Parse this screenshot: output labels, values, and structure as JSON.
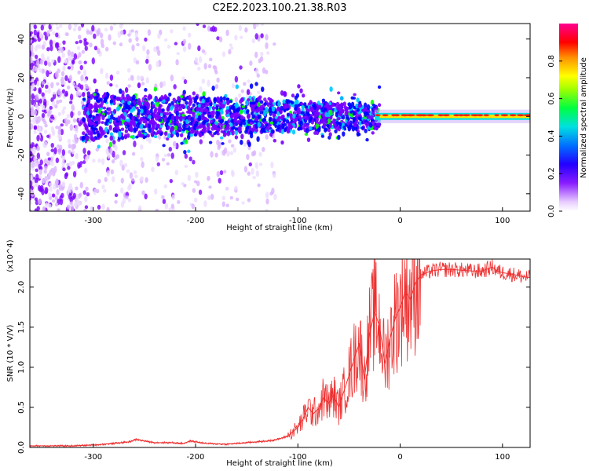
{
  "figure_title": "C2E2.2023.100.21.38.R03",
  "chart_data": [
    {
      "type": "heatmap",
      "title": "C2E2.2023.100.21.38.R03",
      "xlabel": "Height of straight line (km)",
      "ylabel": "Frequency (Hz)",
      "xlim": [
        -362,
        127
      ],
      "ylim": [
        -49,
        48
      ],
      "xticks": [
        -300,
        -200,
        -100,
        0,
        100
      ],
      "yticks": [
        -40,
        -20,
        0,
        20,
        40
      ],
      "colorbar": {
        "label": "Normalized spectral amplitude",
        "range": [
          0.0,
          1.0
        ],
        "ticks": [
          0.0,
          0.2,
          0.4,
          0.6,
          0.8
        ],
        "colormap": [
          "#ffffff",
          "#d9b3ff",
          "#7a00ff",
          "#0000ff",
          "#00c8ff",
          "#00ff00",
          "#ffff00",
          "#ff8800",
          "#ff0000",
          "#ff00aa"
        ]
      },
      "grid": false
    },
    {
      "type": "line",
      "xlabel": "Height of straight line (km)",
      "ylabel": "SNR (10 * V/V)",
      "y_multiplier": "(x10^4)",
      "xlim": [
        -362,
        127
      ],
      "ylim": [
        0,
        2.35
      ],
      "xticks": [
        -300,
        -200,
        -100,
        0,
        100
      ],
      "yticks": [
        0.0,
        0.5,
        1.0,
        1.5,
        2.0
      ],
      "grid": false,
      "series": [
        {
          "color": "#ee3030",
          "x": [
            -362,
            -340,
            -320,
            -300,
            -280,
            -265,
            -258,
            -250,
            -240,
            -225,
            -212,
            -205,
            -190,
            -170,
            -150,
            -130,
            -120,
            -110,
            -100,
            -95,
            -90,
            -85,
            -80,
            -75,
            -70,
            -65,
            -60,
            -55,
            -50,
            -45,
            -40,
            -35,
            -30,
            -25,
            -20,
            -15,
            -10,
            -5,
            0,
            5,
            10,
            15,
            20,
            30,
            40,
            50,
            60,
            70,
            80,
            90,
            95,
            100,
            110,
            120,
            127
          ],
          "y": [
            0.02,
            0.02,
            0.02,
            0.03,
            0.05,
            0.07,
            0.1,
            0.08,
            0.06,
            0.06,
            0.05,
            0.08,
            0.05,
            0.04,
            0.06,
            0.08,
            0.1,
            0.14,
            0.25,
            0.35,
            0.5,
            0.42,
            0.48,
            0.62,
            0.55,
            0.65,
            0.5,
            0.7,
            0.9,
            1.1,
            1.3,
            0.85,
            1.4,
            1.7,
            1.5,
            1.05,
            1.35,
            1.6,
            1.75,
            1.95,
            1.85,
            2.05,
            2.15,
            2.2,
            2.22,
            2.22,
            2.21,
            2.2,
            2.2,
            2.25,
            2.2,
            2.18,
            2.16,
            2.13,
            2.12
          ]
        }
      ]
    }
  ]
}
